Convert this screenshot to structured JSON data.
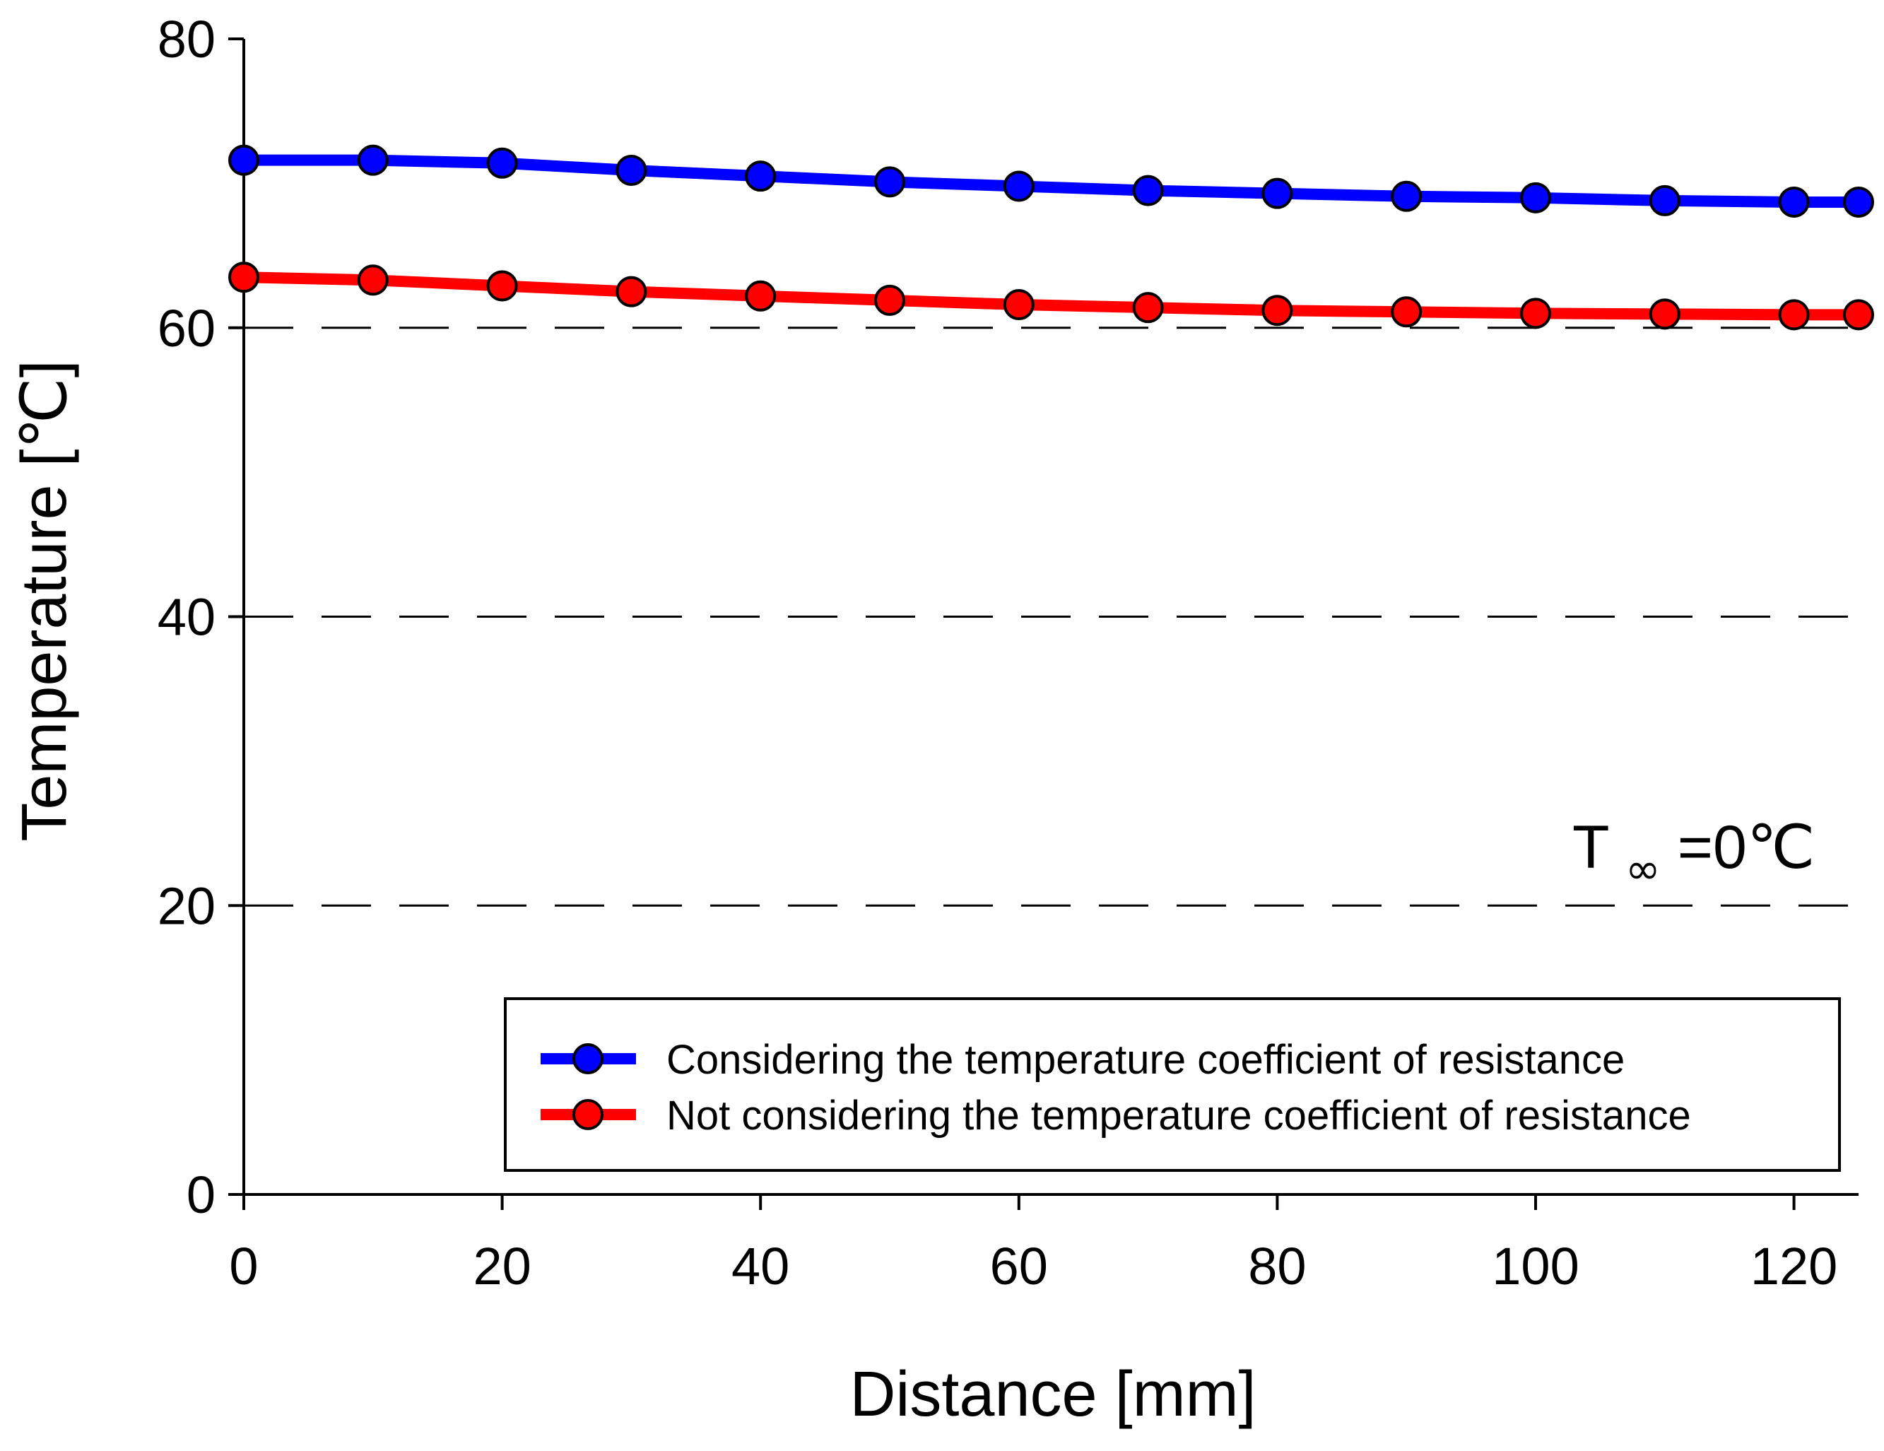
{
  "chart_data": {
    "type": "line",
    "title": "",
    "xlabel": "Distance [mm]",
    "ylabel": "Temperature [℃]",
    "xlim": [
      0,
      125
    ],
    "ylim": [
      0,
      80
    ],
    "xticks": [
      0,
      20,
      40,
      60,
      80,
      100,
      120
    ],
    "yticks": [
      0,
      20,
      40,
      60,
      80
    ],
    "grid": "horizontal dashed",
    "x": [
      0,
      10,
      20,
      30,
      40,
      50,
      60,
      70,
      80,
      90,
      100,
      110,
      120,
      125
    ],
    "series": [
      {
        "name": "Considering the temperature coefficient of resistance",
        "color": "#0000ff",
        "values": [
          71.6,
          71.6,
          71.4,
          70.9,
          70.5,
          70.1,
          69.8,
          69.5,
          69.3,
          69.1,
          69.0,
          68.8,
          68.7,
          68.7
        ]
      },
      {
        "name": "Not considering the temperature coefficient of resistance",
        "color": "#ff0000",
        "values": [
          63.5,
          63.3,
          62.9,
          62.5,
          62.2,
          61.9,
          61.6,
          61.4,
          61.2,
          61.1,
          61.0,
          60.95,
          60.9,
          60.9
        ]
      }
    ],
    "legend_position": "bottom-right",
    "annotation": {
      "main": "T",
      "subscript": "∞",
      "rest": " =0℃"
    }
  }
}
